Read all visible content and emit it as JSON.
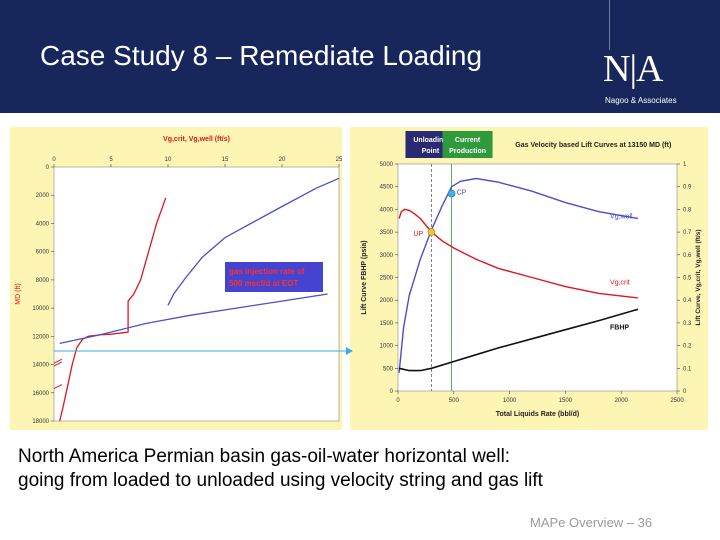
{
  "slide": {
    "title": "Case Study 8 – Remediate Loading",
    "logo_mark": "N|A",
    "logo_sub": "Nagoo & Associates",
    "caption_line1": "North America Permian basin gas-oil-water horizontal well:",
    "caption_line2": "going from loaded to unloaded using velocity string and gas lift",
    "footer": "MAPe Overview – 36"
  },
  "colors": {
    "header_bg": "#17275c",
    "left_panel_bg": "#fdf5b4",
    "right_panel_bg": "#fdf5b4",
    "plot_bg": "#ffffff",
    "red": "#e0161c",
    "blue": "#4a4fc8",
    "black": "#111111",
    "callout_bg": "#4444d0",
    "callout_text": "#ff3030",
    "unloading_box": "#2a2a72",
    "current_box": "#2e9a3c",
    "cp_marker": "#39b6ea",
    "up_marker": "#f2c230",
    "link_line": "#3aaee4"
  },
  "chart_data": [
    {
      "type": "line",
      "title": "Vg,crit, Vg,well (ft/s)",
      "ylabel": "MD (ft)",
      "xlim": [
        0,
        25
      ],
      "ylim": [
        18000,
        0
      ],
      "x_ticks": [
        "0",
        "5",
        "10",
        "15",
        "20",
        "25"
      ],
      "y_ticks": [
        "0",
        "2000",
        "4000",
        "6000",
        "8000",
        "10000",
        "12000",
        "14000",
        "16000",
        "18000"
      ],
      "annotation": "gas injection rate of 500 mscf/d at EOT",
      "series": [
        {
          "name": "Vg,crit",
          "color": "red",
          "x": [
            0.5,
            0.8,
            1.2,
            1.6,
            2.0,
            2.5,
            3.0,
            4.0,
            5.0,
            5.5,
            6.0,
            6.5,
            6.5,
            7.0,
            7.6,
            8.3,
            9.0,
            9.8
          ],
          "y": [
            18000,
            17000,
            15500,
            14000,
            12800,
            12200,
            12000,
            11900,
            11850,
            11800,
            11750,
            11700,
            9500,
            9000,
            8000,
            6000,
            4000,
            2200
          ]
        },
        {
          "name": "Vg,well",
          "color": "blue",
          "x": [
            10.0,
            10.5,
            11.5,
            13.0,
            15.0,
            17.5,
            20.0,
            23.0,
            25.0
          ],
          "y": [
            9800,
            9000,
            7900,
            6400,
            5000,
            3900,
            2800,
            1500,
            800
          ]
        },
        {
          "name": "gas injection",
          "color": "blue",
          "x": [
            0.5,
            4.0,
            8.0,
            10.0,
            12.0,
            16.0,
            20.0,
            24.0
          ],
          "y": [
            12500,
            11900,
            11100,
            10800,
            10500,
            10000,
            9500,
            9000
          ]
        }
      ]
    },
    {
      "type": "line",
      "title": "Gas Velocity based Lift Curves at 13150 MD (ft)",
      "xlabel": "Total Liquids Rate (bbl/d)",
      "ylabel": "Lift Curve FBHP (psia)",
      "y2label": "Lift Curve, Vg,crit, Vg,well (ft/s)",
      "xlim": [
        0,
        2500
      ],
      "ylim": [
        0,
        5000
      ],
      "y2lim": [
        0,
        1
      ],
      "x_ticks": [
        "0",
        "500",
        "1000",
        "1500",
        "2000",
        "2500"
      ],
      "y_ticks": [
        "0",
        "500",
        "1000",
        "1500",
        "2000",
        "2500",
        "3000",
        "3500",
        "4000",
        "4500",
        "5000"
      ],
      "y2_ticks": [
        "0",
        "0.1",
        "0.2",
        "0.3",
        "0.4",
        "0.5",
        "0.6",
        "0.7",
        "0.8",
        "0.9",
        "1"
      ],
      "labels": {
        "unloading": "Unloading\nPoint",
        "current": "Current\nProduction",
        "cp": "CP",
        "up": "UP",
        "vg_well": "Vg,well",
        "vg_crit": "Vg,crit",
        "fbhp": "FBHP"
      },
      "unloading_rate": 300,
      "current_rate": 480,
      "series": [
        {
          "name": "Vg,crit",
          "color": "red",
          "x": [
            10,
            30,
            60,
            100,
            150,
            200,
            300,
            400,
            500,
            700,
            900,
            1200,
            1500,
            1800,
            2150
          ],
          "y": [
            3800,
            3950,
            4000,
            3980,
            3900,
            3800,
            3500,
            3300,
            3150,
            2900,
            2700,
            2500,
            2300,
            2150,
            2050
          ]
        },
        {
          "name": "Vg,well",
          "color": "blue",
          "x": [
            10,
            50,
            100,
            200,
            300,
            400,
            480,
            560,
            700,
            900,
            1200,
            1500,
            1800,
            2150
          ],
          "y": [
            400,
            1400,
            2100,
            2900,
            3550,
            4100,
            4500,
            4620,
            4680,
            4600,
            4400,
            4150,
            3950,
            3800
          ]
        },
        {
          "name": "FBHP",
          "color": "black",
          "x": [
            10,
            100,
            200,
            300,
            500,
            700,
            900,
            1200,
            1500,
            1800,
            2150
          ],
          "y": [
            500,
            450,
            450,
            500,
            650,
            800,
            950,
            1150,
            1350,
            1550,
            1800
          ]
        }
      ],
      "points": [
        {
          "label": "CP",
          "x": 480,
          "y": 4350
        },
        {
          "label": "UP",
          "x": 300,
          "y": 3500
        }
      ]
    }
  ]
}
